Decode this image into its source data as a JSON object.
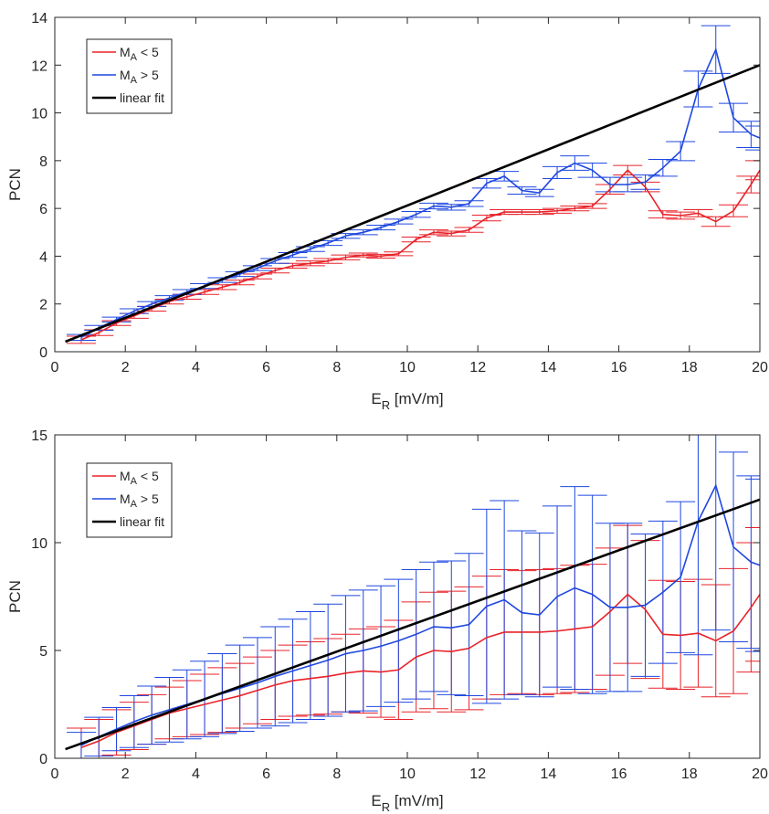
{
  "chart_data": [
    {
      "type": "line",
      "xlabel_main": "E",
      "xlabel_sub": "R",
      "xlabel_unit": " [mV/m]",
      "ylabel": "PCN",
      "xlim": [
        0,
        20
      ],
      "ylim": [
        0,
        14
      ],
      "xticks": [
        0,
        2,
        4,
        6,
        8,
        10,
        12,
        14,
        16,
        18,
        20
      ],
      "yticks": [
        0,
        2,
        4,
        6,
        8,
        10,
        12,
        14
      ],
      "xtick_labels": [
        "0",
        "2",
        "4",
        "6",
        "8",
        "10",
        "12",
        "14",
        "16",
        "18",
        "20"
      ],
      "ytick_labels": [
        "0",
        "2",
        "4",
        "6",
        "8",
        "10",
        "12",
        "14"
      ],
      "legend_position": "top-left",
      "grid": false,
      "error_bar_type": "standard error",
      "legend": [
        {
          "main": "M",
          "sub": "A",
          "rest": " < 5",
          "color": "#e8232a"
        },
        {
          "main": "M",
          "sub": "A",
          "rest": " > 5",
          "color": "#1f48e0"
        },
        {
          "main": "",
          "sub": "",
          "rest": "linear fit",
          "color": "#000000"
        }
      ],
      "series": [
        {
          "name": "M_A < 5",
          "color": "#e8232a",
          "x": [
            0.75,
            1.25,
            1.75,
            2.25,
            2.75,
            3.25,
            3.75,
            4.25,
            4.75,
            5.25,
            5.75,
            6.25,
            6.75,
            7.25,
            7.75,
            8.25,
            8.75,
            9.25,
            9.75,
            10.25,
            10.75,
            11.25,
            11.75,
            12.25,
            12.75,
            13.25,
            13.75,
            14.25,
            14.75,
            15.25,
            15.75,
            16.25,
            16.75,
            17.25,
            17.75,
            18.25,
            18.75,
            19.25,
            19.75,
            20.0
          ],
          "y": [
            0.5,
            0.8,
            1.2,
            1.5,
            1.8,
            2.1,
            2.3,
            2.5,
            2.7,
            2.9,
            3.15,
            3.4,
            3.6,
            3.7,
            3.8,
            3.95,
            4.05,
            4.0,
            4.1,
            4.7,
            5.0,
            4.95,
            5.1,
            5.6,
            5.85,
            5.85,
            5.85,
            5.9,
            6.0,
            6.1,
            6.8,
            7.6,
            6.9,
            5.75,
            5.7,
            5.8,
            5.45,
            5.9,
            7.0,
            7.6
          ],
          "err": [
            0.15,
            0.12,
            0.1,
            0.1,
            0.1,
            0.1,
            0.1,
            0.1,
            0.1,
            0.1,
            0.1,
            0.1,
            0.1,
            0.1,
            0.1,
            0.1,
            0.08,
            0.08,
            0.08,
            0.1,
            0.1,
            0.1,
            0.1,
            0.12,
            0.1,
            0.1,
            0.1,
            0.1,
            0.1,
            0.1,
            0.2,
            0.2,
            0.2,
            0.15,
            0.15,
            0.15,
            0.2,
            0.25,
            0.35,
            0.4
          ]
        },
        {
          "name": "M_A > 5",
          "color": "#1f48e0",
          "x": [
            0.75,
            1.25,
            1.75,
            2.25,
            2.75,
            3.25,
            3.75,
            4.25,
            4.75,
            5.25,
            5.75,
            6.25,
            6.75,
            7.25,
            7.75,
            8.25,
            8.75,
            9.25,
            9.75,
            10.25,
            10.75,
            11.25,
            11.75,
            12.25,
            12.75,
            13.25,
            13.75,
            14.25,
            14.75,
            15.25,
            15.75,
            16.25,
            16.75,
            17.25,
            17.75,
            18.25,
            18.75,
            19.25,
            19.75,
            20.0
          ],
          "y": [
            0.6,
            1.0,
            1.35,
            1.7,
            2.0,
            2.25,
            2.5,
            2.75,
            3.0,
            3.25,
            3.5,
            3.8,
            4.05,
            4.3,
            4.55,
            4.85,
            5.0,
            5.2,
            5.45,
            5.75,
            6.1,
            6.05,
            6.2,
            7.05,
            7.35,
            6.75,
            6.65,
            7.5,
            7.9,
            7.6,
            7.0,
            7.0,
            7.1,
            7.7,
            8.4,
            11.0,
            12.65,
            9.8,
            9.1,
            8.95
          ],
          "err": [
            0.12,
            0.1,
            0.1,
            0.1,
            0.1,
            0.1,
            0.1,
            0.1,
            0.1,
            0.1,
            0.1,
            0.1,
            0.1,
            0.1,
            0.1,
            0.1,
            0.1,
            0.1,
            0.1,
            0.12,
            0.12,
            0.12,
            0.12,
            0.2,
            0.2,
            0.15,
            0.15,
            0.25,
            0.3,
            0.3,
            0.3,
            0.3,
            0.3,
            0.35,
            0.4,
            0.75,
            1.0,
            0.6,
            0.55,
            0.5
          ]
        },
        {
          "name": "linear fit",
          "color": "#000000",
          "x": [
            0.3,
            20.0
          ],
          "y": [
            0.42,
            12.0
          ]
        }
      ]
    },
    {
      "type": "line",
      "xlabel_main": "E",
      "xlabel_sub": "R",
      "xlabel_unit": " [mV/m]",
      "ylabel": "PCN",
      "xlim": [
        0,
        20
      ],
      "ylim": [
        0,
        15
      ],
      "xticks": [
        0,
        2,
        4,
        6,
        8,
        10,
        12,
        14,
        16,
        18,
        20
      ],
      "yticks": [
        0,
        5,
        10,
        15
      ],
      "xtick_labels": [
        "0",
        "2",
        "4",
        "6",
        "8",
        "10",
        "12",
        "14",
        "16",
        "18",
        "20"
      ],
      "ytick_labels": [
        "0",
        "5",
        "10",
        "15"
      ],
      "legend_position": "top-left",
      "grid": false,
      "error_bar_type": "standard deviation",
      "legend": [
        {
          "main": "M",
          "sub": "A",
          "rest": " < 5",
          "color": "#e8232a"
        },
        {
          "main": "M",
          "sub": "A",
          "rest": " > 5",
          "color": "#1f48e0"
        },
        {
          "main": "",
          "sub": "",
          "rest": "linear fit",
          "color": "#000000"
        }
      ],
      "series": [
        {
          "name": "M_A < 5",
          "color": "#e8232a",
          "x": [
            0.75,
            1.25,
            1.75,
            2.25,
            2.75,
            3.25,
            3.75,
            4.25,
            4.75,
            5.25,
            5.75,
            6.25,
            6.75,
            7.25,
            7.75,
            8.25,
            8.75,
            9.25,
            9.75,
            10.25,
            10.75,
            11.25,
            11.75,
            12.25,
            12.75,
            13.25,
            13.75,
            14.25,
            14.75,
            15.25,
            15.75,
            16.25,
            16.75,
            17.25,
            17.75,
            18.25,
            18.75,
            19.25,
            19.75,
            20.0
          ],
          "y": [
            0.5,
            0.8,
            1.2,
            1.5,
            1.8,
            2.1,
            2.3,
            2.5,
            2.7,
            2.9,
            3.15,
            3.4,
            3.6,
            3.7,
            3.8,
            3.95,
            4.05,
            4.0,
            4.1,
            4.7,
            5.0,
            4.95,
            5.1,
            5.6,
            5.85,
            5.85,
            5.85,
            5.9,
            6.0,
            6.1,
            6.8,
            7.6,
            6.9,
            5.75,
            5.7,
            5.8,
            5.45,
            5.9,
            7.0,
            7.6
          ],
          "err": [
            0.9,
            1.0,
            1.05,
            1.1,
            1.15,
            1.2,
            1.3,
            1.4,
            1.5,
            1.5,
            1.55,
            1.6,
            1.65,
            1.7,
            1.75,
            1.8,
            1.95,
            2.1,
            2.3,
            2.55,
            2.7,
            2.8,
            2.85,
            2.85,
            2.9,
            2.85,
            2.9,
            2.9,
            2.95,
            2.9,
            2.95,
            3.2,
            3.2,
            2.5,
            2.5,
            2.5,
            2.6,
            2.9,
            3.0,
            3.1
          ]
        },
        {
          "name": "M_A > 5",
          "color": "#1f48e0",
          "x": [
            0.75,
            1.25,
            1.75,
            2.25,
            2.75,
            3.25,
            3.75,
            4.25,
            4.75,
            5.25,
            5.75,
            6.25,
            6.75,
            7.25,
            7.75,
            8.25,
            8.75,
            9.25,
            9.75,
            10.25,
            10.75,
            11.25,
            11.75,
            12.25,
            12.75,
            13.25,
            13.75,
            14.25,
            14.75,
            15.25,
            15.75,
            16.25,
            16.75,
            17.25,
            17.75,
            18.25,
            18.75,
            19.25,
            19.75,
            20.0
          ],
          "y": [
            0.6,
            1.0,
            1.35,
            1.7,
            2.0,
            2.25,
            2.5,
            2.75,
            3.0,
            3.25,
            3.5,
            3.8,
            4.05,
            4.3,
            4.55,
            4.85,
            5.0,
            5.2,
            5.45,
            5.75,
            6.1,
            6.05,
            6.2,
            7.05,
            7.35,
            6.75,
            6.65,
            7.5,
            7.9,
            7.6,
            7.0,
            7.0,
            7.1,
            7.7,
            8.4,
            11.0,
            12.65,
            9.8,
            9.1,
            8.95
          ],
          "err": [
            0.6,
            0.9,
            1.0,
            1.2,
            1.35,
            1.5,
            1.6,
            1.75,
            1.85,
            2.0,
            2.1,
            2.3,
            2.4,
            2.5,
            2.6,
            2.7,
            2.8,
            2.8,
            2.85,
            3.0,
            3.0,
            3.1,
            3.3,
            4.5,
            4.6,
            3.8,
            3.8,
            4.2,
            4.7,
            4.6,
            3.9,
            3.9,
            3.3,
            3.3,
            3.5,
            6.2,
            6.7,
            4.4,
            4.0,
            4.0
          ]
        },
        {
          "name": "linear fit",
          "color": "#000000",
          "x": [
            0.3,
            20.0
          ],
          "y": [
            0.42,
            12.0
          ]
        }
      ]
    }
  ]
}
